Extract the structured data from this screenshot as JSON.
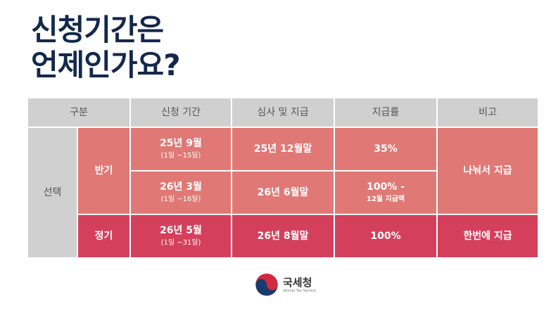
{
  "title": {
    "line1": "신청기간은",
    "line2": "언제인가요?"
  },
  "table": {
    "headers": [
      "구분",
      "신청 기간",
      "심사 및 지급",
      "지급률",
      "비고"
    ],
    "category": "선택",
    "half_label": "반기",
    "regular_label": "정기",
    "rows": [
      {
        "period": "25년 9월",
        "period_sub": "(1일 ~15일)",
        "review": "25년 12월말",
        "rate": "35%",
        "rate_sub": ""
      },
      {
        "period": "26년 3월",
        "period_sub": "(1일 ~16일)",
        "review": "26년 6월말",
        "rate": "100% -",
        "rate_sub": "12월 지급액"
      },
      {
        "period": "26년 5월",
        "period_sub": "(1일 ~31일)",
        "review": "26년 8월말",
        "rate": "100%",
        "rate_sub": ""
      }
    ],
    "note_half": "나눠서 지급",
    "note_regular": "한번에 지급"
  },
  "logo": {
    "name": "국세청",
    "sub": "ational Tax Service"
  },
  "colors": {
    "title": "#13294b",
    "header": "#d0d0d0",
    "half": "#e07876",
    "regular": "#d4405c"
  }
}
